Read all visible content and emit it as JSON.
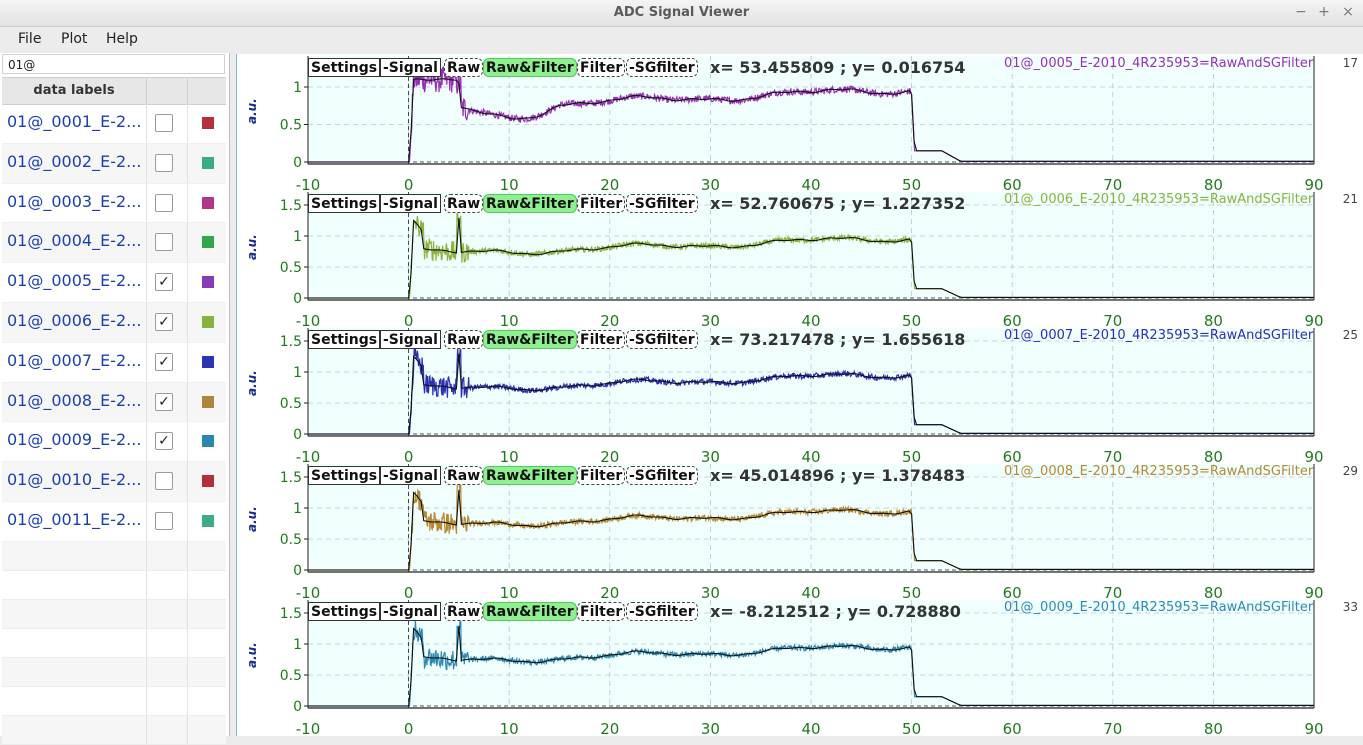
{
  "window": {
    "title": "ADC Signal Viewer",
    "buttons": [
      "−",
      "+",
      "×"
    ]
  },
  "menu": [
    "File",
    "Plot",
    "Help"
  ],
  "search": {
    "value": "01@"
  },
  "table": {
    "header": "data labels",
    "rows": [
      {
        "label": "01@_0001_E-2...",
        "checked": false,
        "color": "#b5303a"
      },
      {
        "label": "01@_0002_E-2...",
        "checked": false,
        "color": "#3aab86"
      },
      {
        "label": "01@_0003_E-2...",
        "checked": false,
        "color": "#b2368a"
      },
      {
        "label": "01@_0004_E-2...",
        "checked": false,
        "color": "#2ea84a"
      },
      {
        "label": "01@_0005_E-2...",
        "checked": true,
        "color": "#8a3ab8"
      },
      {
        "label": "01@_0006_E-2...",
        "checked": true,
        "color": "#88b23a"
      },
      {
        "label": "01@_0007_E-2...",
        "checked": true,
        "color": "#2a36b0"
      },
      {
        "label": "01@_0008_E-2...",
        "checked": true,
        "color": "#b0843a"
      },
      {
        "label": "01@_0009_E-2...",
        "checked": true,
        "color": "#2e86b0"
      },
      {
        "label": "01@_0010_E-2...",
        "checked": false,
        "color": "#b0303a"
      },
      {
        "label": "01@_0011_E-2...",
        "checked": false,
        "color": "#3aab86"
      }
    ]
  },
  "plot_buttons": [
    "Settings",
    "-Signal",
    "Raw",
    "Raw&Filter",
    "Filter",
    "-SGfilter"
  ],
  "plots": [
    {
      "coords": "x= 53.455809 ; y= 0.016754",
      "label": "01@_0005_E-2010_4R235953=RawAndSGFilter",
      "number": "17",
      "color": "#9b30b8",
      "yticks": [
        "1",
        "0.5",
        "0"
      ],
      "ymax": 1.35
    },
    {
      "coords": "x= 52.760675 ; y= 1.227352",
      "label": "01@_0006_E-2010_4R235953=RawAndSGFilter",
      "number": "21",
      "color": "#8db33a",
      "yticks": [
        "1.5",
        "1",
        "0.5",
        "0"
      ],
      "ymax": 1.65
    },
    {
      "coords": "x= 73.217478 ; y= 1.655618",
      "label": "01@_0007_E-2010_4R235953=RawAndSGFilter",
      "number": "25",
      "color": "#2a30b0",
      "yticks": [
        "1.5",
        "1",
        "0.5",
        "0"
      ],
      "ymax": 1.65
    },
    {
      "coords": "x= 45.014896 ; y= 1.378483",
      "label": "01@_0008_E-2010_4R235953=RawAndSGFilter",
      "number": "29",
      "color": "#b58a30",
      "yticks": [
        "1.5",
        "1",
        "0.5",
        "0"
      ],
      "ymax": 1.65
    },
    {
      "coords": "x= -8.212512 ; y= 0.728880",
      "label": "01@_0009_E-2010_4R235953=RawAndSGFilter",
      "number": "33",
      "color": "#2e8ab4",
      "yticks": [
        "1.5",
        "1",
        "0.5",
        "0"
      ],
      "ymax": 1.65
    }
  ],
  "axis": {
    "ylabel": "a.u.",
    "xticks": [
      "-10",
      "0",
      "10",
      "20",
      "30",
      "40",
      "50",
      "60",
      "70",
      "80",
      "90"
    ],
    "xmin": -10,
    "xmax": 90
  },
  "colors": {
    "plot_bg": "#f0fefe",
    "grid": "#b9c7cc",
    "tick_text": "#1f7a1f"
  }
}
